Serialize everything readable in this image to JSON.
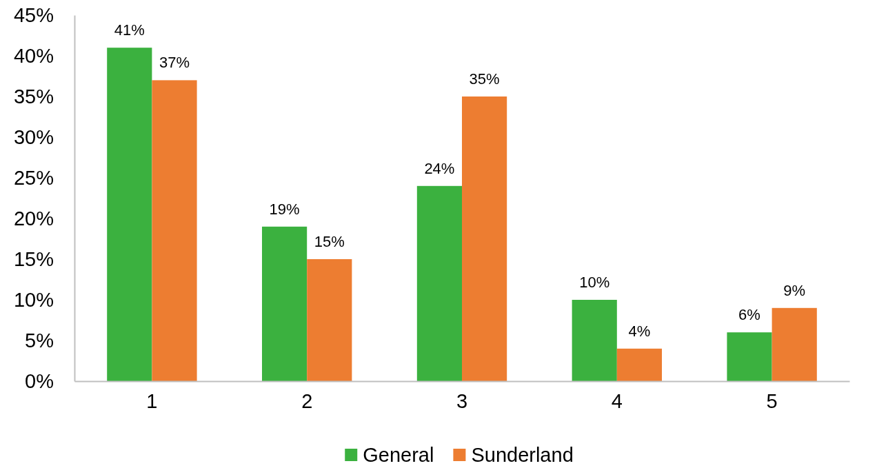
{
  "chart_data": {
    "type": "bar",
    "categories": [
      "1",
      "2",
      "3",
      "4",
      "5"
    ],
    "series": [
      {
        "name": "General",
        "color": "#3bb13f",
        "values": [
          41,
          19,
          24,
          10,
          6
        ],
        "value_labels": [
          "41%",
          "19%",
          "24%",
          "10%",
          "6%"
        ]
      },
      {
        "name": "Sunderland",
        "color": "#ed7d31",
        "values": [
          37,
          15,
          35,
          4,
          9
        ],
        "value_labels": [
          "37%",
          "15%",
          "35%",
          "4%",
          "9%"
        ]
      }
    ],
    "ylim": [
      0,
      45
    ],
    "yticks": [
      {
        "value": 0,
        "label": "0%"
      },
      {
        "value": 5,
        "label": "5%"
      },
      {
        "value": 10,
        "label": "10%"
      },
      {
        "value": 15,
        "label": "15%"
      },
      {
        "value": 20,
        "label": "20%"
      },
      {
        "value": 25,
        "label": "25%"
      },
      {
        "value": 30,
        "label": "30%"
      },
      {
        "value": 35,
        "label": "35%"
      },
      {
        "value": 40,
        "label": "40%"
      },
      {
        "value": 45,
        "label": "45%"
      }
    ],
    "legend": "bottom"
  }
}
